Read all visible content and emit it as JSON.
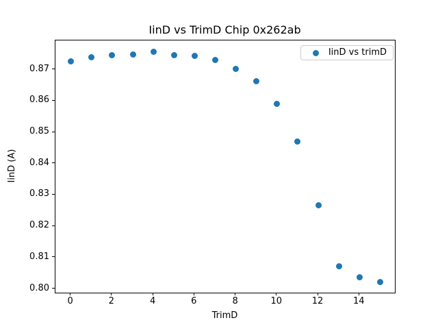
{
  "chart_data": {
    "type": "scatter",
    "title": "IinD vs TrimD Chip 0x262ab",
    "xlabel": "TrimD",
    "ylabel": "IinD (A)",
    "legend": {
      "label": "IinD vs trimD",
      "position": "upper right"
    },
    "marker_color": "#1f77b4",
    "series": [
      {
        "name": "IinD vs trimD",
        "x": [
          0,
          1,
          2,
          3,
          4,
          5,
          6,
          7,
          8,
          9,
          10,
          11,
          12,
          13,
          14,
          15
        ],
        "y": [
          0.8727,
          0.874,
          0.8747,
          0.8748,
          0.8756,
          0.8747,
          0.8744,
          0.873,
          0.8703,
          0.8662,
          0.859,
          0.847,
          0.8268,
          0.8073,
          0.8037,
          0.8023
        ]
      }
    ],
    "xlim": [
      -0.75,
      15.75
    ],
    "ylim": [
      0.7986,
      0.8793
    ],
    "xticks": [
      0,
      2,
      4,
      6,
      8,
      10,
      12,
      14
    ],
    "xtick_labels": [
      "0",
      "2",
      "4",
      "6",
      "8",
      "10",
      "12",
      "14"
    ],
    "yticks": [
      0.8,
      0.81,
      0.82,
      0.83,
      0.84,
      0.85,
      0.86,
      0.87
    ],
    "ytick_labels": [
      "0.80",
      "0.81",
      "0.82",
      "0.83",
      "0.84",
      "0.85",
      "0.86",
      "0.87"
    ],
    "grid": false
  }
}
